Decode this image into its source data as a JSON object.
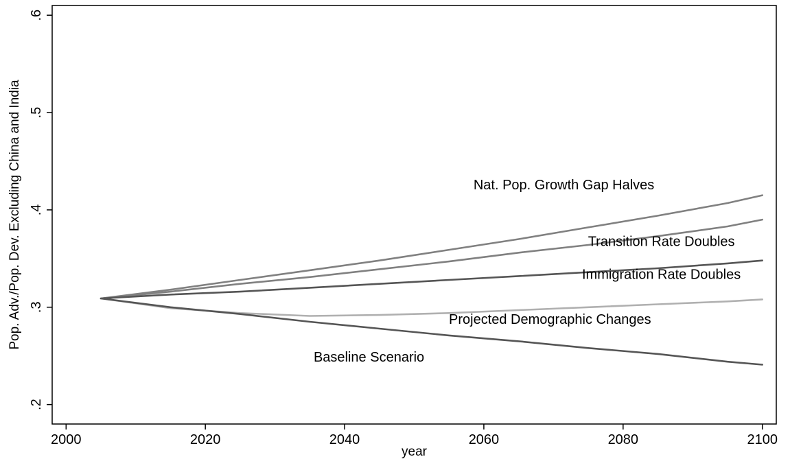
{
  "chart_data": {
    "type": "line",
    "xlabel": "year",
    "ylabel": "Pop. Adv./Pop. Dev. Excluding China and India",
    "xlim": [
      1998,
      2102
    ],
    "ylim": [
      0.18,
      0.61
    ],
    "xticks": [
      2000,
      2020,
      2040,
      2060,
      2080,
      2100
    ],
    "xtick_labels": [
      "2000",
      "2020",
      "2040",
      "2060",
      "2080",
      "2100"
    ],
    "yticks": [
      0.2,
      0.3,
      0.4,
      0.5,
      0.6
    ],
    "ytick_labels": [
      ".2",
      ".3",
      ".4",
      ".5",
      ".6"
    ],
    "grid": false,
    "x": [
      2005,
      2015,
      2025,
      2035,
      2045,
      2055,
      2065,
      2075,
      2085,
      2095,
      2100
    ],
    "series": [
      {
        "name": "Nat. Pop. Growth Gap Halves",
        "color": "#808080",
        "values": [
          0.309,
          0.318,
          0.328,
          0.338,
          0.348,
          0.359,
          0.37,
          0.382,
          0.394,
          0.407,
          0.415
        ]
      },
      {
        "name": "Transition Rate Doubles",
        "color": "#808080",
        "values": [
          0.309,
          0.316,
          0.324,
          0.331,
          0.339,
          0.347,
          0.356,
          0.364,
          0.373,
          0.383,
          0.39
        ]
      },
      {
        "name": "Immigration Rate Doubles",
        "color": "#555555",
        "values": [
          0.309,
          0.313,
          0.316,
          0.32,
          0.324,
          0.328,
          0.332,
          0.336,
          0.34,
          0.345,
          0.348
        ]
      },
      {
        "name": "Projected Demographic Changes",
        "color": "#b0b0b0",
        "values": [
          0.309,
          0.299,
          0.294,
          0.291,
          0.292,
          0.294,
          0.297,
          0.3,
          0.303,
          0.306,
          0.308
        ]
      },
      {
        "name": "Baseline Scenario",
        "color": "#555555",
        "values": [
          0.309,
          0.3,
          0.293,
          0.285,
          0.278,
          0.271,
          0.265,
          0.258,
          0.252,
          0.244,
          0.241
        ]
      }
    ],
    "annotations": [
      {
        "text": "Nat. Pop. Growth Gap Halves",
        "x": 2071.5,
        "y": 0.421
      },
      {
        "text": "Transition Rate Doubles",
        "x": 2085.5,
        "y": 0.363
      },
      {
        "text": "Immigration Rate Doubles",
        "x": 2085.5,
        "y": 0.329
      },
      {
        "text": "Projected Demographic Changes",
        "x": 2069.5,
        "y": 0.283
      },
      {
        "text": "Baseline Scenario",
        "x": 2043.5,
        "y": 0.244
      }
    ]
  }
}
